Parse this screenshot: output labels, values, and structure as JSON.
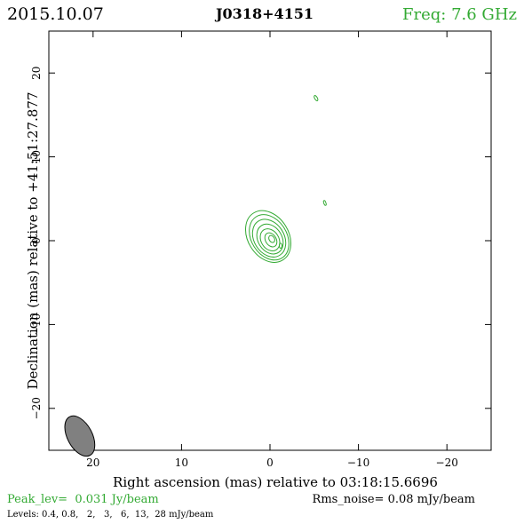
{
  "chart_data": {
    "type": "contour",
    "date": "2015.10.07",
    "source": "J0318+4151",
    "frequency_label": "Freq: 7.6 GHz",
    "xlabel": "Right ascension (mas) relative to 03:18:15.6696",
    "ylabel": "Declination (mas) relative to +41:51:27.877",
    "xlim": [
      25,
      -25
    ],
    "ylim": [
      -25,
      25
    ],
    "x_ticks": [
      20,
      10,
      0,
      -10,
      -20
    ],
    "y_ticks": [
      20,
      10,
      0,
      -10,
      -20
    ],
    "peak_label": "Peak_lev=  0.031 Jy/beam",
    "rms_label": "Rms_noise= 0.08 mJy/beam",
    "levels_label": "Levels: 0.4, 0.8,   2,   3,   6,  13,  28 mJy/beam",
    "levels_mjy": [
      0.4,
      0.8,
      2,
      3,
      6,
      13,
      28
    ],
    "contours": [
      {
        "level": 0.4,
        "x": 0.2,
        "y": 0.5,
        "a": 3.3,
        "b": 2.3,
        "pa": -32
      },
      {
        "level": 0.8,
        "x": 0.1,
        "y": 0.4,
        "a": 2.9,
        "b": 2.0,
        "pa": -32
      },
      {
        "level": 2,
        "x": 0.1,
        "y": 0.3,
        "a": 2.4,
        "b": 1.7,
        "pa": -32
      },
      {
        "level": 3,
        "x": 0.0,
        "y": 0.2,
        "a": 1.9,
        "b": 1.35,
        "pa": -32
      },
      {
        "level": 6,
        "x": 0.0,
        "y": 0.1,
        "a": 1.4,
        "b": 1.0,
        "pa": -32
      },
      {
        "level": 13,
        "x": -0.1,
        "y": 0.1,
        "a": 0.9,
        "b": 0.6,
        "pa": -32
      },
      {
        "level": 28,
        "x": -0.2,
        "y": 0.2,
        "a": 0.45,
        "b": 0.3,
        "pa": -32
      }
    ],
    "noise_islands": [
      {
        "x": -5.2,
        "y": 17.0,
        "a": 0.35,
        "b": 0.15,
        "pa": -30
      },
      {
        "x": -6.2,
        "y": 4.5,
        "a": 0.3,
        "b": 0.12,
        "pa": -20
      },
      {
        "x": -1.2,
        "y": -0.6,
        "a": 0.3,
        "b": 0.15,
        "pa": 0
      }
    ],
    "beam": {
      "x": 21.5,
      "y": -23.3,
      "major": 2.6,
      "minor": 1.4,
      "pa": -28
    },
    "colors": {
      "contour": "#33aa33",
      "frequency": "#33aa33",
      "peak": "#33aa33",
      "beam": "#808080",
      "axes": "#000000"
    }
  }
}
